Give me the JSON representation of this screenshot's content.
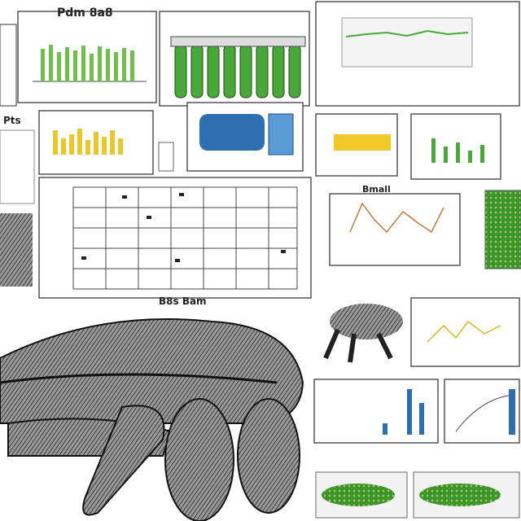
{
  "labels": {
    "top_left": "Pdm 8a8",
    "side_left": "Pts",
    "scatter_caption": "B8s Bam",
    "center_right": "Bmall"
  }
}
